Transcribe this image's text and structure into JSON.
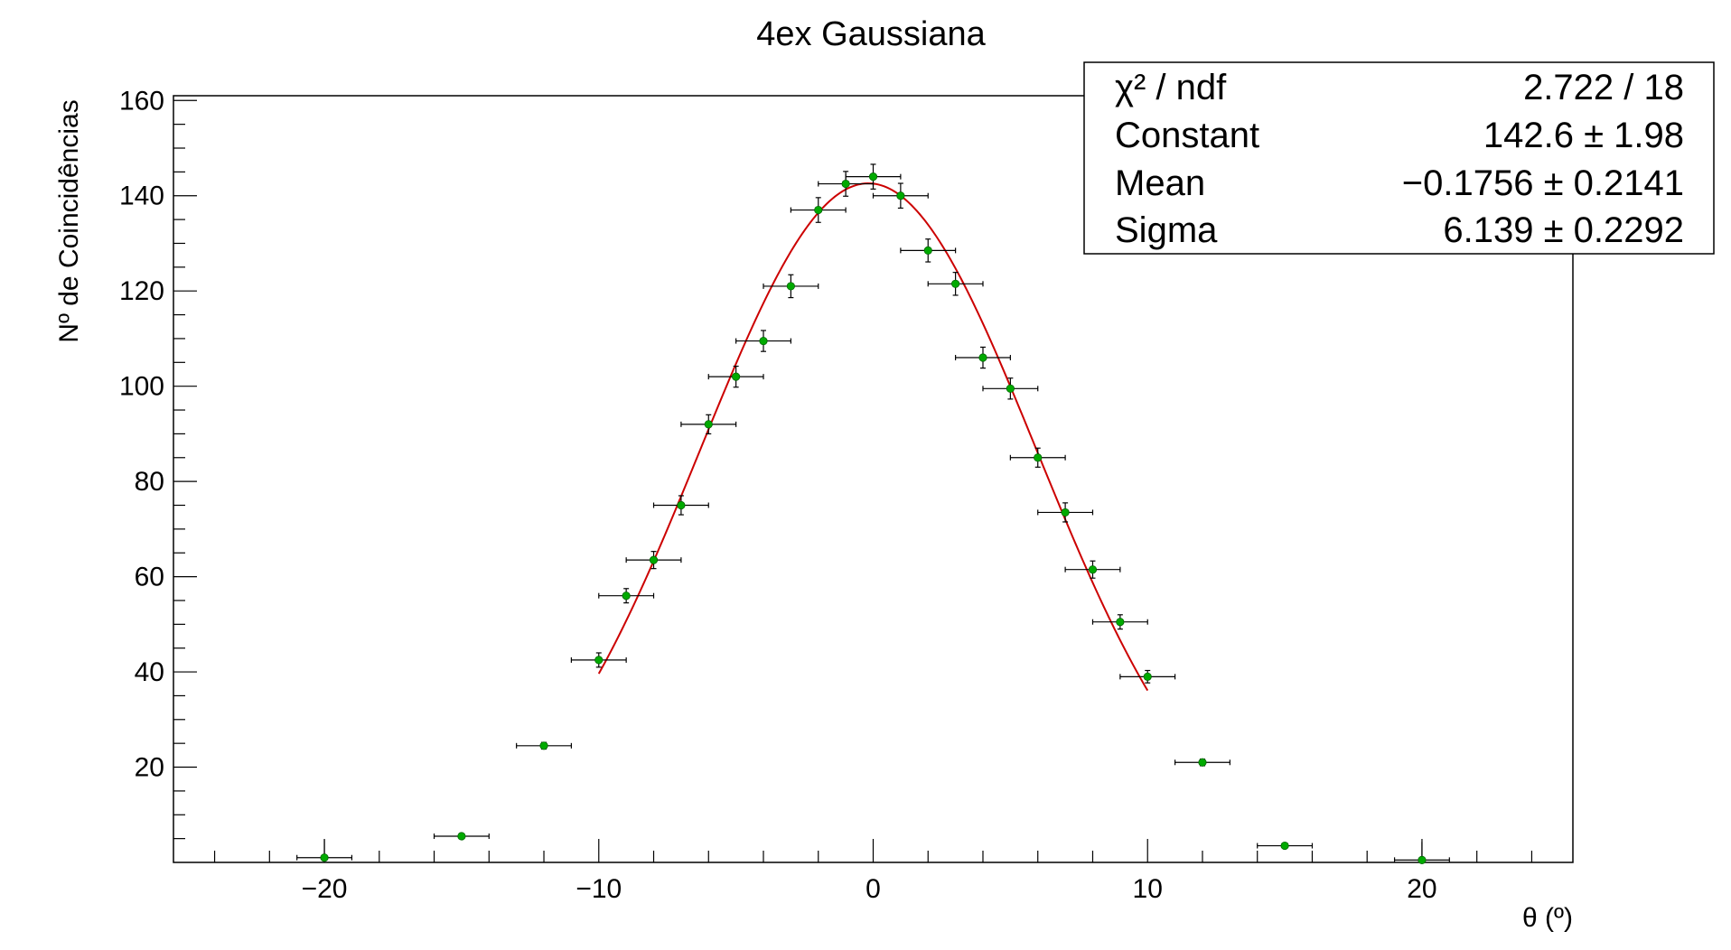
{
  "chart_data": {
    "type": "scatter",
    "title": "4ex Gaussiana",
    "xlabel": "θ (º)",
    "ylabel": "Nº de Coincidências",
    "xlim": [
      -25.5,
      25.5
    ],
    "ylim": [
      0,
      161
    ],
    "xticks": [
      -20,
      -10,
      0,
      10,
      20
    ],
    "xtick_labels": [
      "−20",
      "−10",
      "0",
      "10",
      "20"
    ],
    "yticks": [
      20,
      40,
      60,
      80,
      100,
      120,
      140,
      160
    ],
    "ytick_labels": [
      "20",
      "40",
      "60",
      "80",
      "100",
      "120",
      "140",
      "160"
    ],
    "grid": false,
    "marker_color": "#00aa00",
    "errorbar_color": "#000000",
    "fit_color": "#cc0000",
    "points": [
      {
        "x": -20,
        "y": 1,
        "xerr": 1,
        "yerr": 0
      },
      {
        "x": -15,
        "y": 5.5,
        "xerr": 1,
        "yerr": 0.5
      },
      {
        "x": -12,
        "y": 24.5,
        "xerr": 1,
        "yerr": 0.7
      },
      {
        "x": -10,
        "y": 42.5,
        "xerr": 1,
        "yerr": 1.5
      },
      {
        "x": -9,
        "y": 56,
        "xerr": 1,
        "yerr": 1.5
      },
      {
        "x": -8,
        "y": 63.5,
        "xerr": 1,
        "yerr": 1.8
      },
      {
        "x": -7,
        "y": 75,
        "xerr": 1,
        "yerr": 2
      },
      {
        "x": -6,
        "y": 92,
        "xerr": 1,
        "yerr": 2
      },
      {
        "x": -5,
        "y": 102,
        "xerr": 1,
        "yerr": 2.2
      },
      {
        "x": -4,
        "y": 109.5,
        "xerr": 1,
        "yerr": 2.2
      },
      {
        "x": -3,
        "y": 121,
        "xerr": 1,
        "yerr": 2.4
      },
      {
        "x": -2,
        "y": 137,
        "xerr": 1,
        "yerr": 2.6
      },
      {
        "x": -1,
        "y": 142.5,
        "xerr": 1,
        "yerr": 2.6
      },
      {
        "x": 0,
        "y": 144,
        "xerr": 1,
        "yerr": 2.6
      },
      {
        "x": 1,
        "y": 140,
        "xerr": 1,
        "yerr": 2.6
      },
      {
        "x": 2,
        "y": 128.5,
        "xerr": 1,
        "yerr": 2.4
      },
      {
        "x": 3,
        "y": 121.5,
        "xerr": 1,
        "yerr": 2.4
      },
      {
        "x": 4,
        "y": 106,
        "xerr": 1,
        "yerr": 2.2
      },
      {
        "x": 5,
        "y": 99.5,
        "xerr": 1,
        "yerr": 2.2
      },
      {
        "x": 6,
        "y": 85,
        "xerr": 1,
        "yerr": 2
      },
      {
        "x": 7,
        "y": 73.5,
        "xerr": 1,
        "yerr": 2
      },
      {
        "x": 8,
        "y": 61.5,
        "xerr": 1,
        "yerr": 1.8
      },
      {
        "x": 9,
        "y": 50.5,
        "xerr": 1,
        "yerr": 1.5
      },
      {
        "x": 10,
        "y": 39,
        "xerr": 1,
        "yerr": 1.3
      },
      {
        "x": 12,
        "y": 21,
        "xerr": 1,
        "yerr": 0.7
      },
      {
        "x": 15,
        "y": 3.5,
        "xerr": 1,
        "yerr": 0.5
      },
      {
        "x": 20,
        "y": 0.5,
        "xerr": 1,
        "yerr": 0
      }
    ],
    "fit": {
      "function": "gaus",
      "x_range": [
        -10,
        10
      ],
      "constant": 142.6,
      "mean": -0.1756,
      "sigma": 6.139
    },
    "stats_box": {
      "rows": [
        {
          "name": "χ² / ndf",
          "value": "2.722 / 18"
        },
        {
          "name": "Constant",
          "value": "142.6 ±  1.98"
        },
        {
          "name": "Mean",
          "value": "−0.1756 ± 0.2141"
        },
        {
          "name": "Sigma",
          "value": "6.139 ± 0.2292"
        }
      ]
    }
  }
}
